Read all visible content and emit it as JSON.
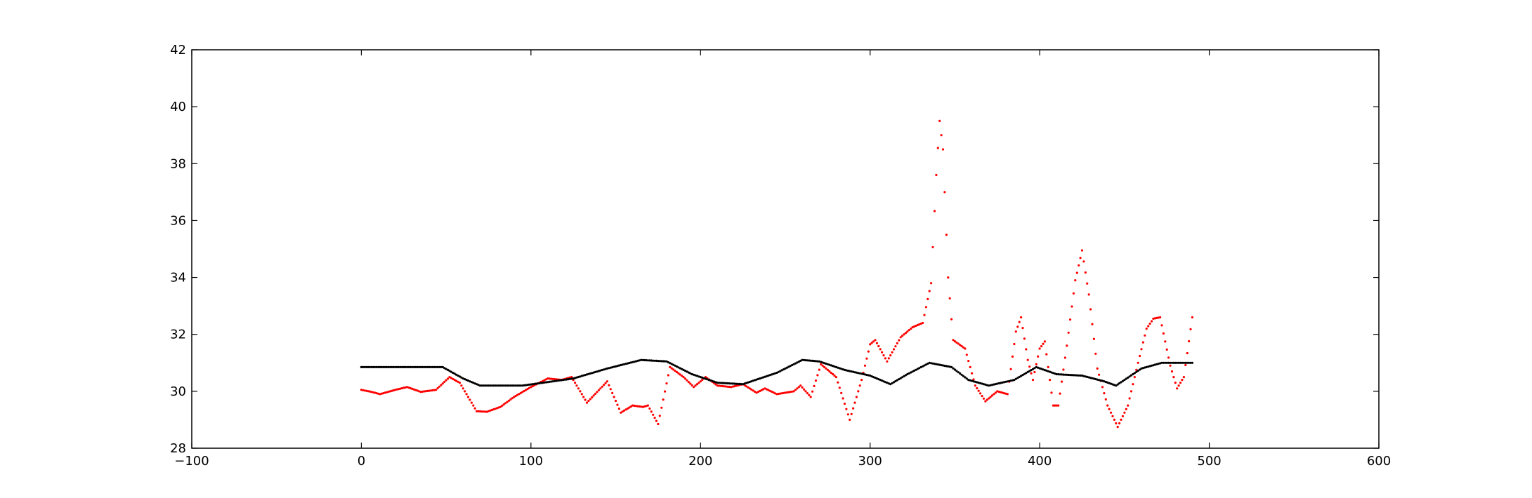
{
  "chart_data": {
    "type": "scatter",
    "xlim": [
      -100,
      600
    ],
    "ylim": [
      28,
      42
    ],
    "x_ticks": [
      -100,
      0,
      100,
      200,
      300,
      400,
      500,
      600
    ],
    "y_ticks": [
      28,
      30,
      32,
      34,
      36,
      38,
      40,
      42
    ],
    "x_tick_labels": [
      "−100",
      "0",
      "100",
      "200",
      "300",
      "400",
      "500",
      "600"
    ],
    "y_tick_labels": [
      "28",
      "30",
      "32",
      "34",
      "36",
      "38",
      "40",
      "42"
    ],
    "grid": false,
    "legend": "none",
    "series": [
      {
        "color": "#ff0000",
        "x_start": 0,
        "x_step": 1,
        "keypoints": [
          [
            0,
            30.05
          ],
          [
            6,
            29.98
          ],
          [
            11,
            29.9
          ],
          [
            20,
            30.05
          ],
          [
            27,
            30.15
          ],
          [
            35,
            29.98
          ],
          [
            44,
            30.05
          ],
          [
            52,
            30.5
          ],
          [
            58,
            30.3
          ],
          [
            68,
            29.3
          ],
          [
            74,
            29.28
          ],
          [
            82,
            29.45
          ],
          [
            90,
            29.8
          ],
          [
            100,
            30.15
          ],
          [
            110,
            30.45
          ],
          [
            118,
            30.4
          ],
          [
            124,
            30.5
          ],
          [
            133,
            29.6
          ],
          [
            145,
            30.35
          ],
          [
            153,
            29.25
          ],
          [
            160,
            29.5
          ],
          [
            166,
            29.45
          ],
          [
            169,
            29.5
          ],
          [
            175,
            28.85
          ],
          [
            182,
            30.85
          ],
          [
            190,
            30.5
          ],
          [
            196,
            30.15
          ],
          [
            203,
            30.5
          ],
          [
            210,
            30.2
          ],
          [
            218,
            30.15
          ],
          [
            225,
            30.25
          ],
          [
            233,
            29.95
          ],
          [
            238,
            30.1
          ],
          [
            245,
            29.9
          ],
          [
            255,
            30.0
          ],
          [
            259,
            30.2
          ],
          [
            265,
            29.8
          ],
          [
            271,
            30.95
          ],
          [
            280,
            30.5
          ],
          [
            288,
            29.0
          ],
          [
            295,
            30.4
          ],
          [
            300,
            31.65
          ],
          [
            303,
            31.8
          ],
          [
            310,
            31.05
          ],
          [
            318,
            31.9
          ],
          [
            325,
            32.25
          ],
          [
            331,
            32.4
          ],
          [
            336,
            33.8
          ],
          [
            339,
            37.6
          ],
          [
            341,
            39.5
          ],
          [
            343,
            38.5
          ],
          [
            346,
            34.0
          ],
          [
            349,
            31.8
          ],
          [
            356,
            31.5
          ],
          [
            362,
            30.2
          ],
          [
            368,
            29.65
          ],
          [
            375,
            30.0
          ],
          [
            381,
            29.9
          ],
          [
            386,
            32.1
          ],
          [
            389,
            32.6
          ],
          [
            393,
            31.1
          ],
          [
            396,
            30.4
          ],
          [
            400,
            31.5
          ],
          [
            403,
            31.75
          ],
          [
            408,
            29.5
          ],
          [
            411,
            29.5
          ],
          [
            416,
            31.6
          ],
          [
            421,
            33.9
          ],
          [
            425,
            34.95
          ],
          [
            429,
            33.4
          ],
          [
            434,
            30.8
          ],
          [
            440,
            29.5
          ],
          [
            446,
            28.75
          ],
          [
            452,
            29.5
          ],
          [
            458,
            31.0
          ],
          [
            463,
            32.2
          ],
          [
            467,
            32.55
          ],
          [
            471,
            32.6
          ],
          [
            477,
            30.9
          ],
          [
            481,
            30.1
          ],
          [
            485,
            30.5
          ],
          [
            490,
            32.6
          ]
        ]
      },
      {
        "color": "#000000",
        "x_start": 0,
        "x_step": 1,
        "keypoints": [
          [
            0,
            30.85
          ],
          [
            48,
            30.85
          ],
          [
            60,
            30.45
          ],
          [
            70,
            30.2
          ],
          [
            95,
            30.2
          ],
          [
            125,
            30.45
          ],
          [
            145,
            30.8
          ],
          [
            165,
            31.1
          ],
          [
            180,
            31.05
          ],
          [
            195,
            30.6
          ],
          [
            210,
            30.3
          ],
          [
            225,
            30.25
          ],
          [
            245,
            30.65
          ],
          [
            260,
            31.1
          ],
          [
            270,
            31.05
          ],
          [
            285,
            30.75
          ],
          [
            300,
            30.55
          ],
          [
            312,
            30.25
          ],
          [
            322,
            30.6
          ],
          [
            335,
            31.0
          ],
          [
            348,
            30.85
          ],
          [
            358,
            30.4
          ],
          [
            370,
            30.2
          ],
          [
            385,
            30.4
          ],
          [
            398,
            30.85
          ],
          [
            410,
            30.6
          ],
          [
            425,
            30.55
          ],
          [
            438,
            30.35
          ],
          [
            445,
            30.2
          ],
          [
            460,
            30.8
          ],
          [
            472,
            31.0
          ],
          [
            490,
            31.0
          ]
        ]
      }
    ]
  }
}
